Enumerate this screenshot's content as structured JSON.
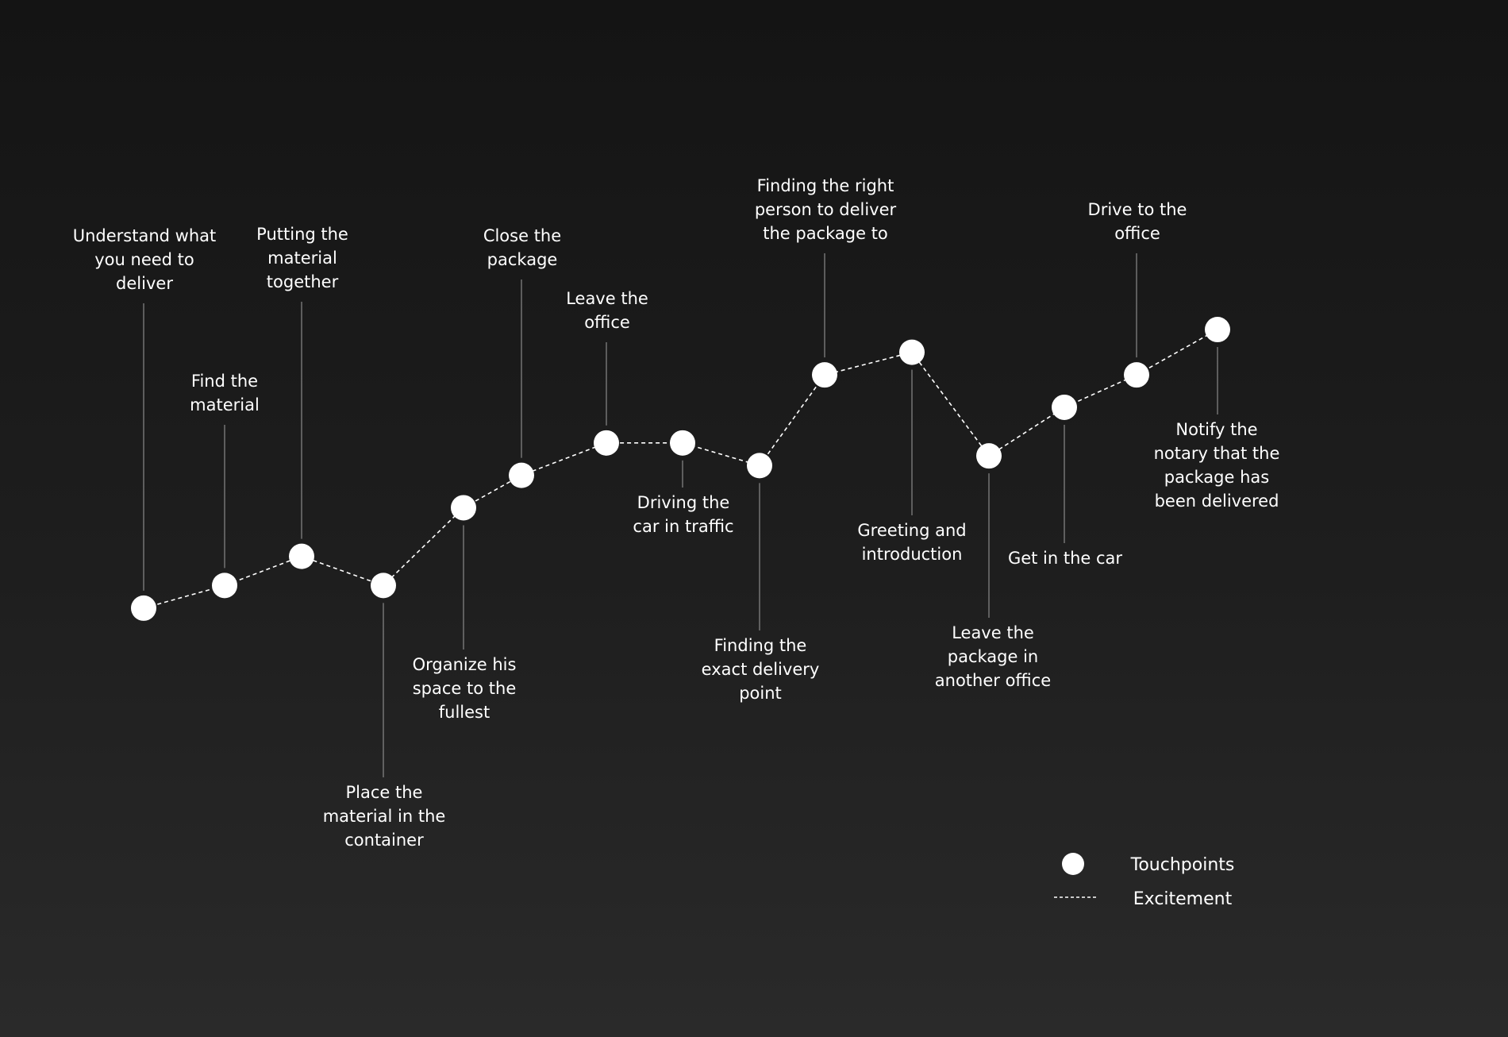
{
  "chart_data": {
    "type": "line",
    "title": "",
    "xlabel": "",
    "ylabel": "",
    "grid": false,
    "legend_position": "bottom-right",
    "y_scale": "Excitement (0 = lowest, 100 = highest, not printed)",
    "colors": {
      "background_top": "#141414",
      "background_bottom": "#2a2a2a",
      "marker": "#ffffff",
      "line": "#ffffff",
      "text": "#ffffff",
      "leader": "#8a8a8a"
    },
    "series": [
      {
        "name": "Excitement",
        "points": [
          {
            "step": 1,
            "label": "Understand what you need to deliver",
            "value": 1
          },
          {
            "step": 2,
            "label": "Find the material",
            "value": 8
          },
          {
            "step": 3,
            "label": "Putting the material together",
            "value": 17
          },
          {
            "step": 4,
            "label": "Place the material in the container",
            "value": 8
          },
          {
            "step": 5,
            "label": "Organize his space to the fullest",
            "value": 32
          },
          {
            "step": 6,
            "label": "Close the package",
            "value": 42
          },
          {
            "step": 7,
            "label": "Leave the office",
            "value": 52
          },
          {
            "step": 8,
            "label": "Driving the car in traffic",
            "value": 52
          },
          {
            "step": 9,
            "label": "Finding the exact delivery point",
            "value": 45
          },
          {
            "step": 10,
            "label": "Finding the right person to deliver the package to",
            "value": 73
          },
          {
            "step": 11,
            "label": "Greeting and introduction",
            "value": 80
          },
          {
            "step": 12,
            "label": "Leave the package in another office",
            "value": 48
          },
          {
            "step": 13,
            "label": "Get in the car",
            "value": 63
          },
          {
            "step": 14,
            "label": "Drive to the office",
            "value": 73
          },
          {
            "step": 15,
            "label": "Notify the notary that the package has been delivered",
            "value": 87
          }
        ]
      }
    ],
    "legend": [
      {
        "marker": "circle",
        "label": "Touchpoints"
      },
      {
        "marker": "dashed-line",
        "label": "Excitement"
      }
    ]
  }
}
